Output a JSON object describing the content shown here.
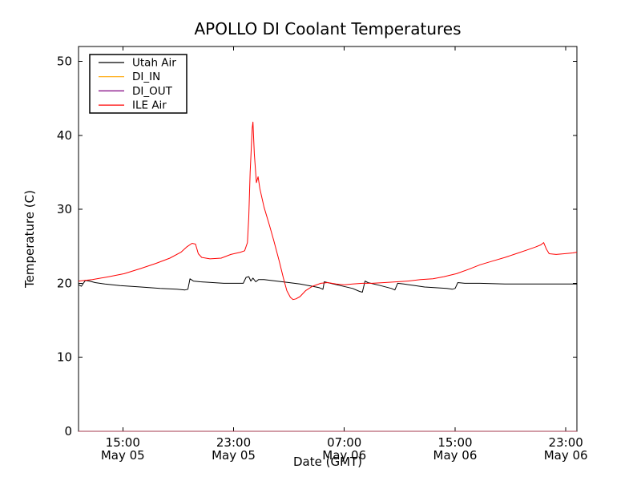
{
  "figure": {
    "background": "#ffffff"
  },
  "chart_data": {
    "type": "line",
    "title": "APOLLO DI Coolant Temperatures",
    "xlabel": "Date (GMT)",
    "ylabel": "Temperature (C)",
    "grid": false,
    "frame_color": "#000000",
    "x_unit": "hours from May 05 00:00 GMT",
    "xlim": [
      11.8,
      47.8
    ],
    "ylim": [
      0,
      52
    ],
    "y_ticks": [
      0,
      10,
      20,
      30,
      40,
      50
    ],
    "x_ticks": [
      {
        "value": 15,
        "time": "15:00",
        "date": "May 05"
      },
      {
        "value": 23,
        "time": "23:00",
        "date": "May 05"
      },
      {
        "value": 31,
        "time": "07:00",
        "date": "May 06"
      },
      {
        "value": 39,
        "time": "15:00",
        "date": "May 06"
      },
      {
        "value": 47,
        "time": "23:00",
        "date": "May 06"
      }
    ],
    "legend": {
      "position": "upper left",
      "entries": [
        {
          "label": "Utah Air",
          "color": "#000000"
        },
        {
          "label": "DI_IN",
          "color": "#ffa500"
        },
        {
          "label": "DI_OUT",
          "color": "#800080"
        },
        {
          "label": "ILE Air",
          "color": "#ff0000"
        }
      ]
    },
    "series": [
      {
        "name": "Utah Air",
        "color": "#000000",
        "opacity": 1,
        "points": [
          [
            11.8,
            19.8
          ],
          [
            12.0,
            19.6
          ],
          [
            12.3,
            20.4
          ],
          [
            12.6,
            20.3
          ],
          [
            13.0,
            20.1
          ],
          [
            13.7,
            19.9
          ],
          [
            14.8,
            19.7
          ],
          [
            16.3,
            19.5
          ],
          [
            17.7,
            19.3
          ],
          [
            18.9,
            19.2
          ],
          [
            19.5,
            19.1
          ],
          [
            19.7,
            19.2
          ],
          [
            19.85,
            20.6
          ],
          [
            20.1,
            20.3
          ],
          [
            20.6,
            20.2
          ],
          [
            21.5,
            20.1
          ],
          [
            22.3,
            20.0
          ],
          [
            23.2,
            20.0
          ],
          [
            23.7,
            20.0
          ],
          [
            23.9,
            20.8
          ],
          [
            24.1,
            20.9
          ],
          [
            24.25,
            20.3
          ],
          [
            24.4,
            20.7
          ],
          [
            24.6,
            20.2
          ],
          [
            24.8,
            20.5
          ],
          [
            25.2,
            20.5
          ],
          [
            26.1,
            20.3
          ],
          [
            27.0,
            20.1
          ],
          [
            27.8,
            19.9
          ],
          [
            28.7,
            19.6
          ],
          [
            29.2,
            19.4
          ],
          [
            29.45,
            19.2
          ],
          [
            29.55,
            20.2
          ],
          [
            30.0,
            20.0
          ],
          [
            30.7,
            19.7
          ],
          [
            31.6,
            19.3
          ],
          [
            32.1,
            18.9
          ],
          [
            32.3,
            18.8
          ],
          [
            32.5,
            20.3
          ],
          [
            32.7,
            20.1
          ],
          [
            33.6,
            19.7
          ],
          [
            34.4,
            19.3
          ],
          [
            34.65,
            19.1
          ],
          [
            34.85,
            20.0
          ],
          [
            35.3,
            19.9
          ],
          [
            36.1,
            19.7
          ],
          [
            36.8,
            19.5
          ],
          [
            37.6,
            19.4
          ],
          [
            38.4,
            19.3
          ],
          [
            38.8,
            19.2
          ],
          [
            39.0,
            19.3
          ],
          [
            39.2,
            20.1
          ],
          [
            39.7,
            20.0
          ],
          [
            40.8,
            20.0
          ],
          [
            42.6,
            19.9
          ],
          [
            44.3,
            19.9
          ],
          [
            46.0,
            19.9
          ],
          [
            47.8,
            19.9
          ]
        ]
      },
      {
        "name": "DI_IN",
        "color": "#ffa500",
        "opacity": 0.85,
        "points": [
          [
            11.8,
            0
          ],
          [
            47.8,
            0
          ]
        ]
      },
      {
        "name": "DI_OUT",
        "color": "#800080",
        "opacity": 0.6,
        "points": [
          [
            11.8,
            0
          ],
          [
            47.8,
            0
          ]
        ]
      },
      {
        "name": "ILE Air",
        "color": "#ff0000",
        "opacity": 1,
        "points": [
          [
            11.8,
            20.3
          ],
          [
            12.8,
            20.5
          ],
          [
            14.0,
            20.9
          ],
          [
            15.1,
            21.3
          ],
          [
            16.3,
            22.0
          ],
          [
            17.4,
            22.7
          ],
          [
            18.4,
            23.4
          ],
          [
            19.2,
            24.2
          ],
          [
            19.6,
            24.9
          ],
          [
            20.0,
            25.4
          ],
          [
            20.25,
            25.3
          ],
          [
            20.45,
            24.0
          ],
          [
            20.7,
            23.5
          ],
          [
            21.3,
            23.3
          ],
          [
            22.1,
            23.4
          ],
          [
            22.8,
            23.9
          ],
          [
            23.5,
            24.2
          ],
          [
            23.8,
            24.4
          ],
          [
            24.0,
            25.5
          ],
          [
            24.1,
            29.0
          ],
          [
            24.2,
            35.0
          ],
          [
            24.35,
            41.0
          ],
          [
            24.4,
            41.8
          ],
          [
            24.5,
            37.5
          ],
          [
            24.65,
            33.6
          ],
          [
            24.77,
            34.4
          ],
          [
            24.9,
            32.8
          ],
          [
            25.2,
            30.3
          ],
          [
            25.6,
            27.8
          ],
          [
            25.9,
            25.8
          ],
          [
            26.3,
            23.0
          ],
          [
            26.6,
            20.7
          ],
          [
            26.85,
            19.0
          ],
          [
            27.1,
            18.1
          ],
          [
            27.3,
            17.8
          ],
          [
            27.5,
            17.9
          ],
          [
            27.8,
            18.2
          ],
          [
            28.2,
            19.0
          ],
          [
            28.7,
            19.6
          ],
          [
            29.3,
            20.0
          ],
          [
            29.8,
            20.1
          ],
          [
            30.4,
            19.9
          ],
          [
            31.0,
            19.8
          ],
          [
            31.6,
            19.9
          ],
          [
            32.3,
            20.0
          ],
          [
            33.0,
            20.0
          ],
          [
            33.9,
            20.1
          ],
          [
            34.8,
            20.2
          ],
          [
            35.6,
            20.3
          ],
          [
            36.5,
            20.5
          ],
          [
            37.4,
            20.6
          ],
          [
            38.2,
            20.9
          ],
          [
            39.1,
            21.3
          ],
          [
            40.0,
            21.9
          ],
          [
            40.8,
            22.5
          ],
          [
            41.7,
            23.0
          ],
          [
            42.6,
            23.5
          ],
          [
            43.4,
            24.0
          ],
          [
            44.2,
            24.5
          ],
          [
            44.8,
            24.9
          ],
          [
            45.2,
            25.2
          ],
          [
            45.4,
            25.5
          ],
          [
            45.6,
            24.6
          ],
          [
            45.8,
            24.0
          ],
          [
            46.3,
            23.9
          ],
          [
            46.9,
            24.0
          ],
          [
            47.5,
            24.1
          ],
          [
            47.8,
            24.2
          ]
        ]
      }
    ]
  }
}
